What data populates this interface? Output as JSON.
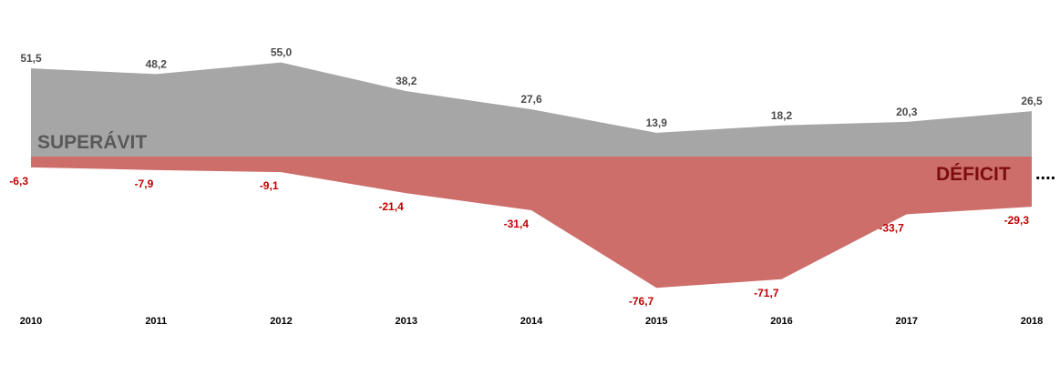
{
  "chart_data": {
    "type": "area",
    "categories": [
      "2010",
      "2011",
      "2012",
      "2013",
      "2014",
      "2015",
      "2016",
      "2017",
      "2018"
    ],
    "series": [
      {
        "name": "SUPERÁVIT",
        "values": [
          51.5,
          48.2,
          55.0,
          38.2,
          27.6,
          13.9,
          18.2,
          20.3,
          26.5
        ],
        "labels": [
          "51,5",
          "48,2",
          "55,0",
          "38,2",
          "27,6",
          "13,9",
          "18,2",
          "20,3",
          "26,5"
        ],
        "color": "#a6a6a6"
      },
      {
        "name": "DÉFICIT",
        "values": [
          -6.3,
          -7.9,
          -9.1,
          -21.4,
          -31.4,
          -76.7,
          -71.7,
          -33.7,
          -29.3
        ],
        "labels": [
          "-6,3",
          "-7,9",
          "-9,1",
          "-21,4",
          "-31,4",
          "-76,7",
          "-71,7",
          "-33,7",
          "-29,3"
        ],
        "color": "#cd6e6b"
      }
    ],
    "label_colors": {
      "positive": "#4a4a4a",
      "negative": "#c00000",
      "deficit_text": "#7b0d0d",
      "superavit_text": "#595959"
    },
    "continuation_marker": "....",
    "grid": false,
    "legend": "none"
  }
}
